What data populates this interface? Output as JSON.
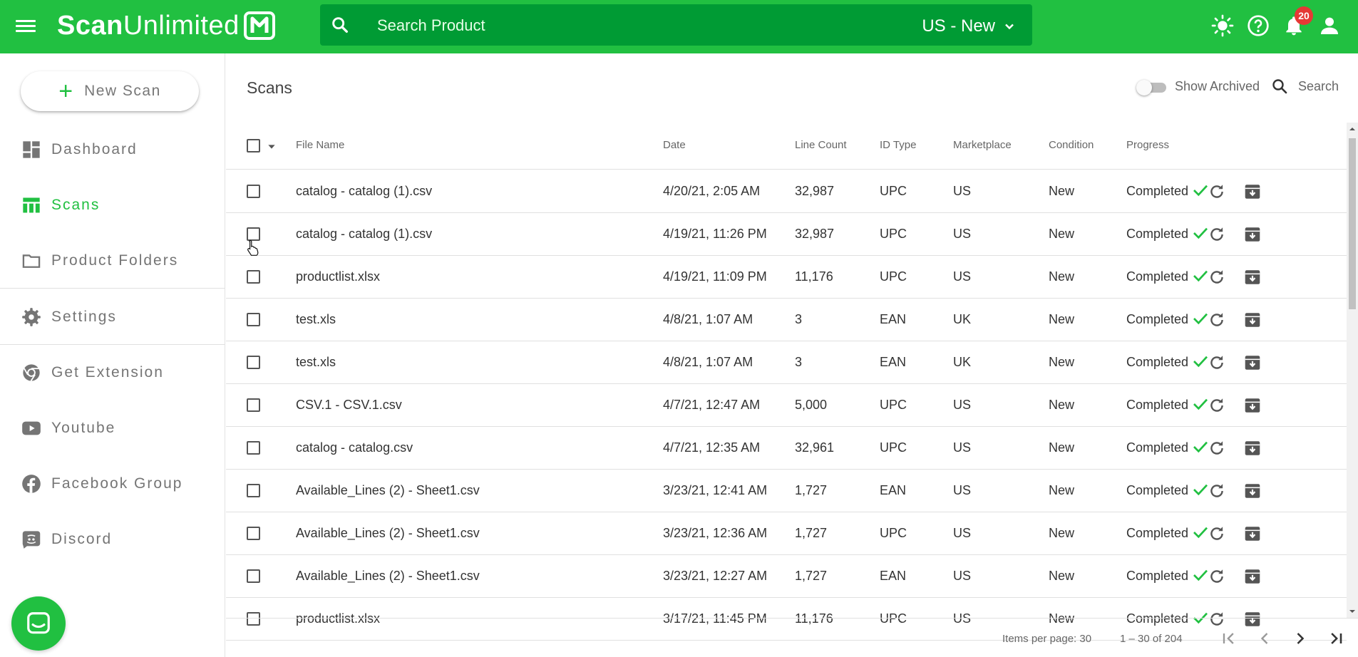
{
  "app": {
    "logo_bold": "Scan",
    "logo_light": "Unlimited",
    "search_placeholder": "Search Product",
    "region": "US - New",
    "notification_count": "20"
  },
  "sidebar": {
    "new_scan": "New Scan",
    "items": [
      {
        "label": "Dashboard",
        "icon": "dashboard-icon"
      },
      {
        "label": "Scans",
        "icon": "table-icon",
        "active": true
      },
      {
        "label": "Product Folders",
        "icon": "folder-icon"
      },
      {
        "label": "Settings",
        "icon": "gear-icon"
      },
      {
        "label": "Get Extension",
        "icon": "chrome-icon"
      },
      {
        "label": "Youtube",
        "icon": "youtube-icon"
      },
      {
        "label": "Facebook Group",
        "icon": "facebook-icon"
      },
      {
        "label": "Discord",
        "icon": "discord-icon"
      }
    ]
  },
  "main": {
    "title": "Scans",
    "show_archived": "Show Archived",
    "search": "Search"
  },
  "table": {
    "headers": {
      "file_name": "File Name",
      "date": "Date",
      "line_count": "Line Count",
      "id_type": "ID Type",
      "marketplace": "Marketplace",
      "condition": "Condition",
      "progress": "Progress"
    },
    "rows": [
      {
        "file": "catalog - catalog (1).csv",
        "date": "4/20/21, 2:05 AM",
        "lines": "32,987",
        "id": "UPC",
        "market": "US",
        "cond": "New",
        "progress": "Completed"
      },
      {
        "file": "catalog - catalog (1).csv",
        "date": "4/19/21, 11:26 PM",
        "lines": "32,987",
        "id": "UPC",
        "market": "US",
        "cond": "New",
        "progress": "Completed"
      },
      {
        "file": "productlist.xlsx",
        "date": "4/19/21, 11:09 PM",
        "lines": "11,176",
        "id": "UPC",
        "market": "US",
        "cond": "New",
        "progress": "Completed"
      },
      {
        "file": "test.xls",
        "date": "4/8/21, 1:07 AM",
        "lines": "3",
        "id": "EAN",
        "market": "UK",
        "cond": "New",
        "progress": "Completed"
      },
      {
        "file": "test.xls",
        "date": "4/8/21, 1:07 AM",
        "lines": "3",
        "id": "EAN",
        "market": "UK",
        "cond": "New",
        "progress": "Completed"
      },
      {
        "file": "CSV.1 - CSV.1.csv",
        "date": "4/7/21, 12:47 AM",
        "lines": "5,000",
        "id": "UPC",
        "market": "US",
        "cond": "New",
        "progress": "Completed"
      },
      {
        "file": "catalog - catalog.csv",
        "date": "4/7/21, 12:35 AM",
        "lines": "32,961",
        "id": "UPC",
        "market": "US",
        "cond": "New",
        "progress": "Completed"
      },
      {
        "file": "Available_Lines (2) - Sheet1.csv",
        "date": "3/23/21, 12:41 AM",
        "lines": "1,727",
        "id": "EAN",
        "market": "US",
        "cond": "New",
        "progress": "Completed"
      },
      {
        "file": "Available_Lines (2) - Sheet1.csv",
        "date": "3/23/21, 12:36 AM",
        "lines": "1,727",
        "id": "UPC",
        "market": "US",
        "cond": "New",
        "progress": "Completed"
      },
      {
        "file": "Available_Lines (2) - Sheet1.csv",
        "date": "3/23/21, 12:27 AM",
        "lines": "1,727",
        "id": "EAN",
        "market": "US",
        "cond": "New",
        "progress": "Completed"
      },
      {
        "file": "productlist.xlsx",
        "date": "3/17/21, 11:45 PM",
        "lines": "11,176",
        "id": "UPC",
        "market": "US",
        "cond": "New",
        "progress": "Completed"
      }
    ]
  },
  "footer": {
    "items_per_page_label": "Items per page:",
    "items_per_page": "30",
    "range": "1 – 30 of 204"
  },
  "colors": {
    "brand_green": "#21c041",
    "search_green": "#009b34",
    "badge_red": "#e53935"
  }
}
